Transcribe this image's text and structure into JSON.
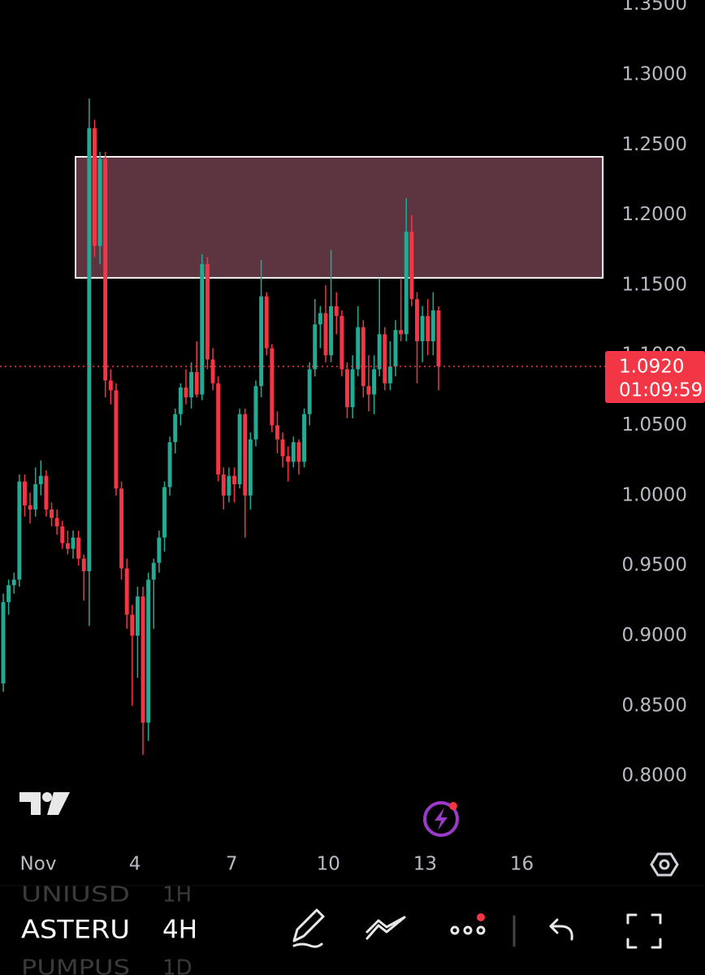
{
  "chart_data": {
    "type": "candlestick",
    "x": [
      -0.083,
      0.083,
      0.25,
      0.417,
      0.583,
      0.75,
      0.917,
      1.083,
      1.25,
      1.417,
      1.583,
      1.75,
      1.917,
      2.083,
      2.25,
      2.417,
      2.583,
      2.75,
      2.917,
      3.083,
      3.25,
      3.417,
      3.583,
      3.75,
      3.917,
      4.083,
      4.25,
      4.417,
      4.583,
      4.75,
      4.917,
      5.083,
      5.25,
      5.417,
      5.583,
      5.75,
      5.917,
      6.083,
      6.25,
      6.417,
      6.583,
      6.75,
      6.917,
      7.083,
      7.25,
      7.417,
      7.583,
      7.75,
      7.917,
      8.083,
      8.25,
      8.417,
      8.583,
      8.75,
      8.917,
      9.083,
      9.25,
      9.417,
      9.583,
      9.75,
      9.917,
      10.083,
      10.25,
      10.417,
      10.583,
      10.75,
      10.917,
      11.083,
      11.25,
      11.417,
      11.583,
      11.75,
      11.917,
      12.083,
      12.25,
      12.417,
      12.583,
      12.75,
      12.917,
      13.083,
      13.25,
      13.417
    ],
    "open": [
      0.866,
      0.924,
      0.936,
      0.94,
      1.01,
      0.993,
      0.99,
      1.008,
      1.014,
      0.99,
      0.984,
      0.978,
      0.966,
      0.962,
      0.97,
      0.955,
      0.946,
      1.262,
      1.178,
      1.24,
      1.082,
      1.075,
      1.005,
      0.948,
      0.915,
      0.9,
      0.928,
      0.838,
      0.94,
      0.952,
      0.97,
      1.006,
      1.038,
      1.058,
      1.077,
      1.07,
      1.088,
      1.072,
      1.165,
      1.097,
      1.08,
      1.015,
      1.0,
      1.014,
      1.008,
      1.058,
      1.0,
      1.04,
      1.078,
      1.142,
      1.105,
      1.05,
      1.04,
      1.028,
      1.024,
      1.038,
      1.024,
      1.058,
      1.09,
      1.122,
      1.13,
      1.1,
      1.135,
      1.128,
      1.09,
      1.063,
      1.09,
      1.12,
      1.078,
      1.072,
      1.09,
      1.115,
      1.08,
      1.092,
      1.118,
      1.115,
      1.188,
      1.14,
      1.11,
      1.128,
      1.11,
      1.132
    ],
    "high": [
      0.93,
      0.94,
      0.945,
      1.015,
      1.015,
      1.002,
      1.02,
      1.025,
      1.018,
      0.995,
      0.99,
      0.982,
      0.975,
      0.975,
      0.975,
      0.958,
      1.283,
      1.268,
      1.245,
      1.245,
      1.09,
      1.08,
      1.01,
      0.955,
      0.922,
      0.935,
      0.935,
      0.945,
      0.955,
      0.975,
      1.01,
      1.042,
      1.062,
      1.08,
      1.09,
      1.095,
      1.11,
      1.172,
      1.17,
      1.105,
      1.085,
      1.02,
      1.02,
      1.02,
      1.062,
      1.062,
      1.045,
      1.082,
      1.168,
      1.145,
      1.108,
      1.06,
      1.045,
      1.035,
      1.042,
      1.04,
      1.062,
      1.095,
      1.14,
      1.135,
      1.15,
      1.175,
      1.145,
      1.132,
      1.095,
      1.1,
      1.135,
      1.125,
      1.1,
      1.1,
      1.155,
      1.12,
      1.11,
      1.125,
      1.155,
      1.212,
      1.2,
      1.145,
      1.135,
      1.14,
      1.145,
      1.135
    ],
    "low": [
      0.86,
      0.915,
      0.93,
      0.935,
      0.985,
      0.98,
      0.985,
      1.0,
      0.985,
      0.978,
      0.972,
      0.962,
      0.958,
      0.955,
      0.95,
      0.925,
      0.907,
      1.17,
      1.165,
      1.07,
      1.065,
      1.0,
      0.94,
      0.905,
      0.85,
      0.87,
      0.815,
      0.825,
      0.905,
      0.945,
      0.96,
      1.0,
      1.03,
      1.05,
      1.065,
      1.062,
      1.07,
      1.068,
      1.09,
      1.075,
      1.01,
      0.99,
      0.995,
      0.995,
      1.005,
      0.97,
      0.99,
      1.035,
      1.07,
      1.1,
      1.045,
      1.03,
      1.02,
      1.01,
      1.02,
      1.015,
      1.02,
      1.05,
      1.085,
      1.105,
      1.095,
      1.095,
      1.115,
      1.085,
      1.055,
      1.055,
      1.085,
      1.07,
      1.06,
      1.058,
      1.085,
      1.075,
      1.075,
      1.085,
      1.11,
      1.11,
      1.135,
      1.08,
      1.095,
      1.1,
      1.1,
      1.075
    ],
    "close": [
      0.924,
      0.936,
      0.94,
      1.01,
      0.993,
      0.99,
      1.008,
      1.014,
      0.99,
      0.984,
      0.978,
      0.966,
      0.962,
      0.97,
      0.955,
      0.946,
      1.262,
      1.178,
      1.24,
      1.082,
      1.075,
      1.005,
      0.948,
      0.915,
      0.9,
      0.928,
      0.838,
      0.94,
      0.952,
      0.97,
      1.006,
      1.038,
      1.058,
      1.077,
      1.07,
      1.088,
      1.072,
      1.165,
      1.097,
      1.08,
      1.015,
      1.0,
      1.014,
      1.008,
      1.058,
      1.0,
      1.04,
      1.078,
      1.142,
      1.105,
      1.05,
      1.04,
      1.028,
      1.024,
      1.038,
      1.024,
      1.058,
      1.09,
      1.122,
      1.13,
      1.1,
      1.135,
      1.128,
      1.09,
      1.063,
      1.09,
      1.12,
      1.078,
      1.072,
      1.09,
      1.115,
      1.08,
      1.092,
      1.118,
      1.115,
      1.188,
      1.14,
      1.11,
      1.128,
      1.11,
      1.132,
      1.092
    ],
    "up_color": "#22ab94",
    "down_color": "#f23645",
    "xlim": [
      -0.184,
      18.582
    ],
    "xticks": [
      {
        "value": 1,
        "label": "Nov"
      },
      4,
      7,
      10,
      13,
      16
    ],
    "ylim": [
      0.7508,
      1.3533
    ],
    "yticks": [
      {
        "value": 1.35,
        "label": "1.3500"
      },
      {
        "value": 1.3,
        "label": "1.3000"
      },
      {
        "value": 1.25,
        "label": "1.2500"
      },
      {
        "value": 1.2,
        "label": "1.2000"
      },
      {
        "value": 1.15,
        "label": "1.1500"
      },
      {
        "value": 1.1,
        "label": "1.1000"
      },
      {
        "value": 1.05,
        "label": "1.0500"
      },
      {
        "value": 1.0,
        "label": "1.0000"
      },
      {
        "value": 0.95,
        "label": "0.9500"
      },
      {
        "value": 0.9,
        "label": "0.9000"
      },
      {
        "value": 0.85,
        "label": "0.8500"
      },
      {
        "value": 0.8,
        "label": "0.8000"
      }
    ],
    "zone": {
      "top": 1.2415,
      "bottom": 1.1552,
      "x_start": 2.159,
      "x_end": 18.51,
      "color": "#5c3540"
    },
    "last_price": {
      "value": 1.092,
      "label": "1.0920",
      "countdown": "01:09:59",
      "color": "#f23645"
    }
  },
  "toolbar": {
    "symbols": [
      {
        "symbol": "UNIUSD",
        "interval": "1H"
      },
      {
        "symbol": "ASTERU",
        "interval": "4H"
      },
      {
        "symbol": "PUMPUS",
        "interval": "1D"
      }
    ]
  }
}
